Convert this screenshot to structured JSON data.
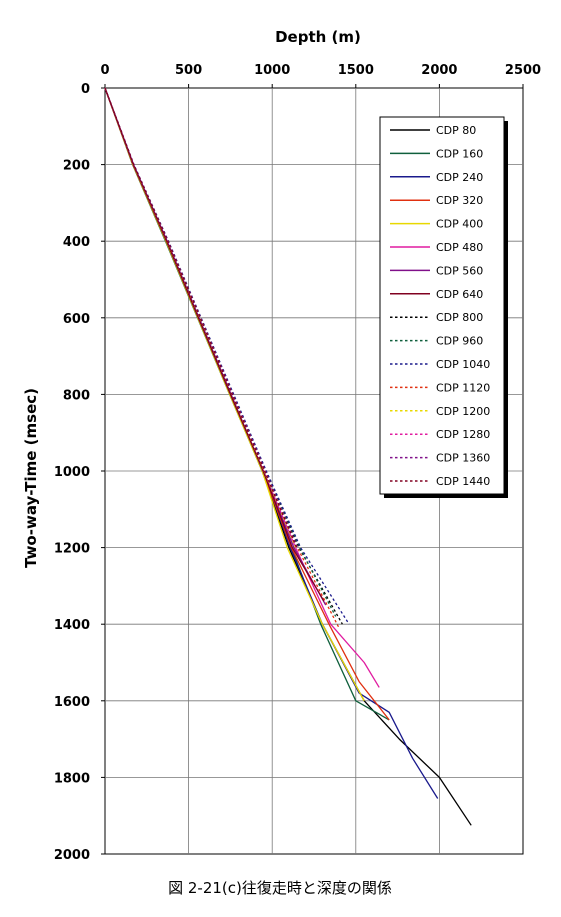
{
  "chart_data": {
    "type": "line",
    "xlabel": "Depth (m)",
    "ylabel": "Two-way-Time (msec)",
    "caption": "図 2-21(c)往復走時と深度の関係",
    "x_axis": {
      "min": 0,
      "max": 2500,
      "ticks": [
        0,
        500,
        1000,
        1500,
        2000,
        2500
      ],
      "position": "top"
    },
    "y_axis": {
      "min": 0,
      "max": 2000,
      "ticks": [
        0,
        200,
        400,
        600,
        800,
        1000,
        1200,
        1400,
        1600,
        1800,
        2000
      ],
      "inverted": true
    },
    "grid": true,
    "legend_position": "top-right",
    "series": [
      {
        "name": "CDP 80",
        "color": "#000000",
        "dash": "solid",
        "points": [
          [
            0,
            0
          ],
          [
            170,
            200
          ],
          [
            370,
            400
          ],
          [
            560,
            600
          ],
          [
            750,
            800
          ],
          [
            940,
            1000
          ],
          [
            1100,
            1200
          ],
          [
            1300,
            1400
          ],
          [
            1550,
            1600
          ],
          [
            1760,
            1700
          ],
          [
            2000,
            1800
          ],
          [
            2190,
            1925
          ]
        ]
      },
      {
        "name": "CDP 160",
        "color": "#0f5f3c",
        "dash": "solid",
        "points": [
          [
            0,
            0
          ],
          [
            165,
            200
          ],
          [
            362,
            400
          ],
          [
            553,
            600
          ],
          [
            745,
            800
          ],
          [
            940,
            1000
          ],
          [
            1115,
            1200
          ],
          [
            1290,
            1400
          ],
          [
            1500,
            1600
          ],
          [
            1700,
            1650
          ]
        ]
      },
      {
        "name": "CDP 240",
        "color": "#1a1a8c",
        "dash": "solid",
        "points": [
          [
            0,
            0
          ],
          [
            168,
            200
          ],
          [
            368,
            400
          ],
          [
            558,
            600
          ],
          [
            752,
            800
          ],
          [
            945,
            1000
          ],
          [
            1108,
            1200
          ],
          [
            1300,
            1400
          ],
          [
            1520,
            1580
          ],
          [
            1700,
            1630
          ],
          [
            1840,
            1750
          ],
          [
            1990,
            1855
          ]
        ]
      },
      {
        "name": "CDP 320",
        "color": "#e03010",
        "dash": "solid",
        "points": [
          [
            0,
            0
          ],
          [
            167,
            200
          ],
          [
            366,
            400
          ],
          [
            556,
            600
          ],
          [
            748,
            800
          ],
          [
            942,
            1000
          ],
          [
            1115,
            1200
          ],
          [
            1340,
            1400
          ],
          [
            1520,
            1550
          ],
          [
            1700,
            1650
          ]
        ]
      },
      {
        "name": "CDP 400",
        "color": "#e8d800",
        "dash": "solid",
        "points": [
          [
            0,
            0
          ],
          [
            166,
            200
          ],
          [
            365,
            400
          ],
          [
            555,
            600
          ],
          [
            746,
            800
          ],
          [
            940,
            1000
          ],
          [
            1090,
            1200
          ],
          [
            1300,
            1400
          ],
          [
            1550,
            1600
          ]
        ]
      },
      {
        "name": "CDP 480",
        "color": "#e01ca0",
        "dash": "solid",
        "points": [
          [
            0,
            0
          ],
          [
            169,
            200
          ],
          [
            370,
            400
          ],
          [
            560,
            600
          ],
          [
            752,
            800
          ],
          [
            948,
            1000
          ],
          [
            1140,
            1200
          ],
          [
            1350,
            1400
          ],
          [
            1550,
            1500
          ],
          [
            1640,
            1565
          ]
        ]
      },
      {
        "name": "CDP 560",
        "color": "#80108a",
        "dash": "solid",
        "points": [
          [
            0,
            0
          ],
          [
            171,
            200
          ],
          [
            372,
            400
          ],
          [
            562,
            600
          ],
          [
            754,
            800
          ],
          [
            945,
            1000
          ],
          [
            1130,
            1200
          ],
          [
            1320,
            1350
          ]
        ]
      },
      {
        "name": "CDP 640",
        "color": "#800020",
        "dash": "solid",
        "points": [
          [
            0,
            0
          ],
          [
            168,
            200
          ],
          [
            368,
            400
          ],
          [
            558,
            600
          ],
          [
            750,
            800
          ],
          [
            946,
            1000
          ],
          [
            1120,
            1200
          ],
          [
            1310,
            1340
          ]
        ]
      },
      {
        "name": "CDP 800",
        "color": "#000000",
        "dash": "dotted",
        "points": [
          [
            0,
            0
          ],
          [
            172,
            200
          ],
          [
            378,
            400
          ],
          [
            572,
            600
          ],
          [
            765,
            800
          ],
          [
            960,
            1000
          ],
          [
            1160,
            1200
          ],
          [
            1420,
            1400
          ]
        ]
      },
      {
        "name": "CDP 960",
        "color": "#0f5f3c",
        "dash": "dotted",
        "points": [
          [
            0,
            0
          ],
          [
            171,
            200
          ],
          [
            376,
            400
          ],
          [
            570,
            600
          ],
          [
            762,
            800
          ],
          [
            958,
            1000
          ],
          [
            1165,
            1200
          ],
          [
            1380,
            1380
          ]
        ]
      },
      {
        "name": "CDP 1040",
        "color": "#1a1a8c",
        "dash": "dotted",
        "points": [
          [
            0,
            0
          ],
          [
            173,
            200
          ],
          [
            380,
            400
          ],
          [
            575,
            600
          ],
          [
            770,
            800
          ],
          [
            965,
            1000
          ],
          [
            1170,
            1200
          ],
          [
            1460,
            1400
          ]
        ]
      },
      {
        "name": "CDP 1120",
        "color": "#e03010",
        "dash": "dotted",
        "points": [
          [
            0,
            0
          ],
          [
            172,
            200
          ],
          [
            377,
            400
          ],
          [
            571,
            600
          ],
          [
            764,
            800
          ],
          [
            958,
            1000
          ],
          [
            1150,
            1200
          ],
          [
            1400,
            1410
          ]
        ]
      },
      {
        "name": "CDP 1200",
        "color": "#e8d800",
        "dash": "dotted",
        "points": [
          [
            0,
            0
          ],
          [
            170,
            200
          ],
          [
            374,
            400
          ],
          [
            567,
            600
          ],
          [
            760,
            800
          ],
          [
            952,
            1000
          ],
          [
            1140,
            1200
          ]
        ]
      },
      {
        "name": "CDP 1280",
        "color": "#e01ca0",
        "dash": "dotted",
        "points": [
          [
            0,
            0
          ],
          [
            171,
            200
          ],
          [
            375,
            400
          ],
          [
            569,
            600
          ],
          [
            762,
            800
          ],
          [
            955,
            1000
          ],
          [
            1145,
            1200
          ]
        ]
      },
      {
        "name": "CDP 1360",
        "color": "#80108a",
        "dash": "dotted",
        "points": [
          [
            0,
            0
          ],
          [
            172,
            200
          ],
          [
            376,
            400
          ],
          [
            570,
            600
          ],
          [
            763,
            800
          ],
          [
            957,
            1000
          ],
          [
            1150,
            1200
          ]
        ]
      },
      {
        "name": "CDP 1440",
        "color": "#800020",
        "dash": "dotted",
        "points": [
          [
            0,
            0
          ],
          [
            171,
            200
          ],
          [
            375,
            400
          ],
          [
            569,
            600
          ],
          [
            761,
            800
          ],
          [
            954,
            1000
          ],
          [
            1146,
            1200
          ]
        ]
      }
    ]
  }
}
